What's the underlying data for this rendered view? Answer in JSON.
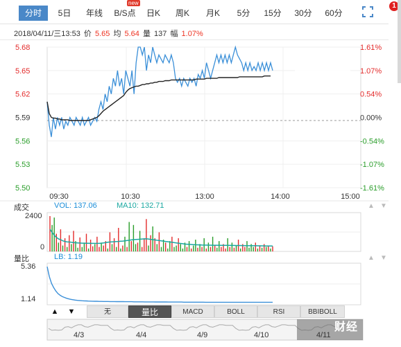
{
  "tabs": [
    {
      "label": "分时",
      "active": true
    },
    {
      "label": "5日"
    },
    {
      "label": "年线"
    },
    {
      "label": "B/S点",
      "badge": "new"
    },
    {
      "label": "日K"
    },
    {
      "label": "周K"
    },
    {
      "label": "月K"
    },
    {
      "label": "5分"
    },
    {
      "label": "15分"
    },
    {
      "label": "30分"
    },
    {
      "label": "60分"
    }
  ],
  "notification_count": "1",
  "info": {
    "datetime": "2018/04/11/三13:53",
    "price_label": "价",
    "price": "5.65",
    "avg_label": "均",
    "avg": "5.64",
    "vol_label": "量",
    "vol": "137",
    "amp_label": "幅",
    "amp": "1.07%"
  },
  "volume_panel": {
    "title": "成交",
    "vol_legend": "VOL: 137.06",
    "ma_legend": "MA10: 132.71",
    "ticks": [
      "2400",
      "0"
    ]
  },
  "ratio_panel": {
    "title": "量比",
    "legend": "LB: 1.19",
    "ticks": [
      "5.36",
      "1.14"
    ]
  },
  "controls": {
    "buttons": [
      "无",
      "量比",
      "MACD",
      "BOLL",
      "RSI",
      "BBIBOLL"
    ],
    "active": "量比"
  },
  "navigator": {
    "dates": [
      "4/3",
      "4/4",
      "4/9",
      "4/10",
      "4/11"
    ]
  },
  "brand_text": "财经",
  "colors": {
    "price_line": "#3a8fd8",
    "avg_line": "#222222",
    "up": "#e32b2b",
    "down": "#2a9d2a",
    "accent": "#4a88c8"
  },
  "chart_data": {
    "type": "line",
    "x_ticks": [
      "09:30",
      "10:30",
      "13:00",
      "14:00",
      "15:00"
    ],
    "y_ticks_left": [
      "5.68",
      "5.65",
      "5.62",
      "5.59",
      "5.56",
      "5.53",
      "5.50"
    ],
    "y_ticks_right": [
      "1.61%",
      "1.07%",
      "0.54%",
      "0.00%",
      "-0.54%",
      "-1.07%",
      "-1.61%"
    ],
    "ylim": [
      5.5,
      5.68
    ],
    "prev_close": 5.59,
    "series": [
      {
        "values": [
          5.61,
          5.58,
          5.565,
          5.59,
          5.575,
          5.59,
          5.58,
          5.59,
          5.575,
          5.585,
          5.58,
          5.59,
          5.585,
          5.58,
          5.59,
          5.585,
          5.58,
          5.59,
          5.58,
          5.585,
          5.59,
          5.58,
          5.585,
          5.59,
          5.585,
          5.6,
          5.61,
          5.6,
          5.62,
          5.61,
          5.63,
          5.62,
          5.64,
          5.63,
          5.65,
          5.63,
          5.64,
          5.62,
          5.65,
          5.64,
          5.63,
          5.65,
          5.62,
          5.66,
          5.68,
          5.68,
          5.67,
          5.68,
          5.65,
          5.67,
          5.66,
          5.68,
          5.67,
          5.66,
          5.67,
          5.665,
          5.66,
          5.67,
          5.665,
          5.66,
          5.67,
          5.66,
          5.64,
          5.635,
          5.64,
          5.63,
          5.64,
          5.635,
          5.63,
          5.64,
          5.635,
          5.64,
          5.63,
          5.645,
          5.64,
          5.65,
          5.64,
          5.66,
          5.65,
          5.64,
          5.65,
          5.66,
          5.67,
          5.66,
          5.67,
          5.66,
          5.67,
          5.66,
          5.67,
          5.66,
          5.67,
          5.68,
          5.67,
          5.665,
          5.66,
          5.65,
          5.66,
          5.65,
          5.66,
          5.65,
          5.655,
          5.65,
          5.66,
          5.65,
          5.66,
          5.65,
          5.66,
          5.65,
          5.66,
          5.65
        ]
      },
      {
        "values": [
          5.61,
          5.595,
          5.59,
          5.589,
          5.589,
          5.588,
          5.588,
          5.587,
          5.587,
          5.587,
          5.587,
          5.586,
          5.586,
          5.586,
          5.586,
          5.586,
          5.586,
          5.586,
          5.586,
          5.586,
          5.586,
          5.587,
          5.588,
          5.589,
          5.59,
          5.592,
          5.595,
          5.598,
          5.6,
          5.602,
          5.604,
          5.606,
          5.608,
          5.61,
          5.612,
          5.614,
          5.616,
          5.618,
          5.622,
          5.625,
          5.627,
          5.628,
          5.629,
          5.63,
          5.63,
          5.631,
          5.632,
          5.632,
          5.633,
          5.633,
          5.634,
          5.634,
          5.635,
          5.635,
          5.636,
          5.636,
          5.636,
          5.637,
          5.637,
          5.637,
          5.638,
          5.638,
          5.638,
          5.638,
          5.638,
          5.638,
          5.638,
          5.638,
          5.638,
          5.638,
          5.638,
          5.638,
          5.639,
          5.639,
          5.639,
          5.639,
          5.639,
          5.64,
          5.64,
          5.64,
          5.64,
          5.64,
          5.64,
          5.641,
          5.641,
          5.641,
          5.641,
          5.641,
          5.641,
          5.641,
          5.641,
          5.641,
          5.641,
          5.642,
          5.642,
          5.642,
          5.642,
          5.642,
          5.642,
          5.642,
          5.642,
          5.642,
          5.642,
          5.642,
          5.642,
          5.643,
          5.643,
          5.643,
          5.643
        ]
      }
    ],
    "volume": [
      2400,
      1800,
      2300,
      1200,
      600,
      1500,
      400,
      900,
      300,
      1100,
      500,
      1400,
      700,
      250,
      950,
      300,
      600,
      1200,
      200,
      800,
      350,
      500,
      1000,
      300,
      600,
      400,
      700,
      200,
      1300,
      500,
      900,
      300,
      1600,
      200,
      400,
      1000,
      300,
      2000,
      700,
      1800,
      500,
      600,
      1400,
      300,
      900,
      2200,
      400,
      1100,
      1700,
      900,
      500,
      1300,
      300,
      800,
      600,
      200,
      700,
      1000,
      300,
      400,
      900,
      500,
      200,
      600,
      300,
      700,
      200,
      400,
      800,
      250,
      500,
      300,
      900,
      200,
      600,
      300,
      1000,
      400,
      250,
      700,
      300,
      500,
      200,
      900,
      300,
      600,
      250,
      400,
      800,
      200,
      500,
      300,
      700,
      250,
      500,
      300,
      600,
      200,
      400,
      250,
      500,
      300,
      400,
      200,
      350
    ],
    "volume_ma": [
      1500,
      1300,
      1100,
      950,
      850,
      800,
      720,
      680,
      650,
      640,
      620,
      600,
      590,
      580,
      570,
      560,
      560,
      555,
      550,
      548,
      546,
      545,
      544,
      545,
      560,
      580,
      600,
      620,
      640,
      650,
      660,
      670,
      680,
      690,
      700,
      720,
      740,
      760,
      780,
      800,
      810,
      820,
      830,
      840,
      850,
      860,
      840,
      820,
      800,
      780,
      760,
      740,
      720,
      700,
      680,
      660,
      640,
      620,
      600,
      580,
      560,
      540,
      520,
      500,
      490,
      480,
      470,
      460,
      450,
      445,
      440,
      435,
      430,
      428,
      425,
      423,
      420,
      420,
      420,
      418,
      416,
      414,
      412,
      410,
      408,
      406,
      404,
      402,
      400,
      398,
      396,
      394,
      392,
      390,
      388,
      386,
      384,
      382,
      380,
      378,
      376,
      374,
      372,
      370,
      368
    ],
    "volume_ylim": [
      0,
      2400
    ],
    "ratio": [
      5.36,
      4.2,
      3.4,
      2.9,
      2.5,
      2.2,
      2.0,
      1.85,
      1.75,
      1.65,
      1.58,
      1.52,
      1.48,
      1.44,
      1.41,
      1.39,
      1.37,
      1.35,
      1.34,
      1.33,
      1.32,
      1.31,
      1.3,
      1.3,
      1.29,
      1.29,
      1.28,
      1.28,
      1.28,
      1.27,
      1.27,
      1.27,
      1.26,
      1.26,
      1.26,
      1.26,
      1.25,
      1.25,
      1.25,
      1.25,
      1.24,
      1.24,
      1.24,
      1.24,
      1.24,
      1.23,
      1.23,
      1.23,
      1.23,
      1.23,
      1.22,
      1.22,
      1.22,
      1.22,
      1.22,
      1.22,
      1.21,
      1.21,
      1.21,
      1.21,
      1.21,
      1.21,
      1.21,
      1.2,
      1.2,
      1.2,
      1.2,
      1.2,
      1.2,
      1.2,
      1.2,
      1.2,
      1.2,
      1.19,
      1.19,
      1.19,
      1.19,
      1.19,
      1.19,
      1.19,
      1.19,
      1.19,
      1.19,
      1.19,
      1.19,
      1.19,
      1.19,
      1.19,
      1.19,
      1.19,
      1.19,
      1.19,
      1.19,
      1.19,
      1.19,
      1.19,
      1.19,
      1.19,
      1.19,
      1.19,
      1.19,
      1.19,
      1.19,
      1.19,
      1.19
    ],
    "ratio_ylim": [
      1.14,
      5.36
    ]
  }
}
